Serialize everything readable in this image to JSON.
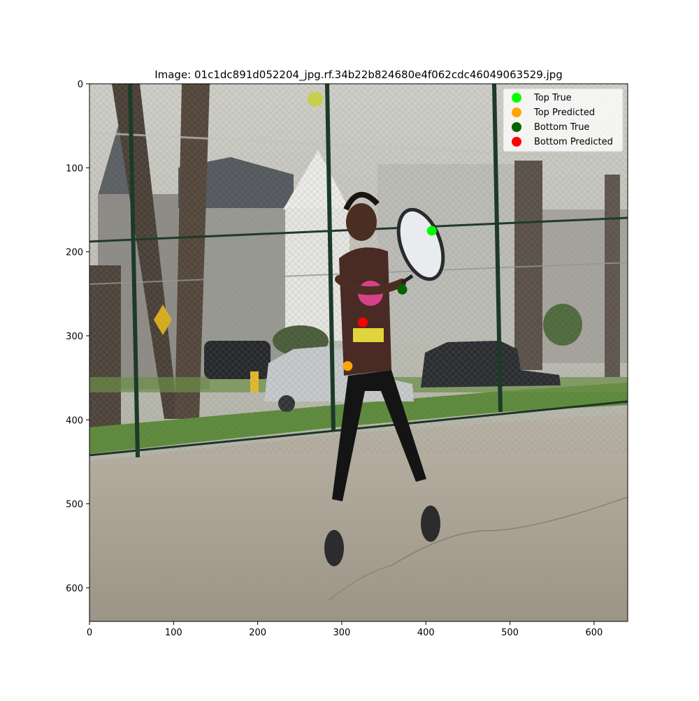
{
  "chart_data": {
    "type": "scatter",
    "title": "Image: 01c1dc891d052204_jpg.rf.34b22b824680e4f062cdc46049063529.jpg",
    "xlabel": "",
    "ylabel": "",
    "xlim": [
      0,
      640
    ],
    "ylim": [
      640,
      0
    ],
    "y_inverted": true,
    "grid": false,
    "legend_position": "top-right",
    "x_ticks": [
      0,
      100,
      200,
      300,
      400,
      500,
      600
    ],
    "y_ticks": [
      0,
      100,
      200,
      300,
      400,
      500,
      600
    ],
    "background": "photograph of a girl swinging a tennis racket on an outdoor court",
    "series": [
      {
        "name": "Top True",
        "color": "#00ff00",
        "points": [
          [
            407,
            175
          ]
        ]
      },
      {
        "name": "Top Predicted",
        "color": "#ffa500",
        "points": [
          [
            307,
            336
          ]
        ]
      },
      {
        "name": "Bottom True",
        "color": "#006400",
        "points": [
          [
            372,
            245
          ]
        ]
      },
      {
        "name": "Bottom Predicted",
        "color": "#ff0000",
        "points": [
          [
            325,
            284
          ]
        ]
      }
    ]
  }
}
